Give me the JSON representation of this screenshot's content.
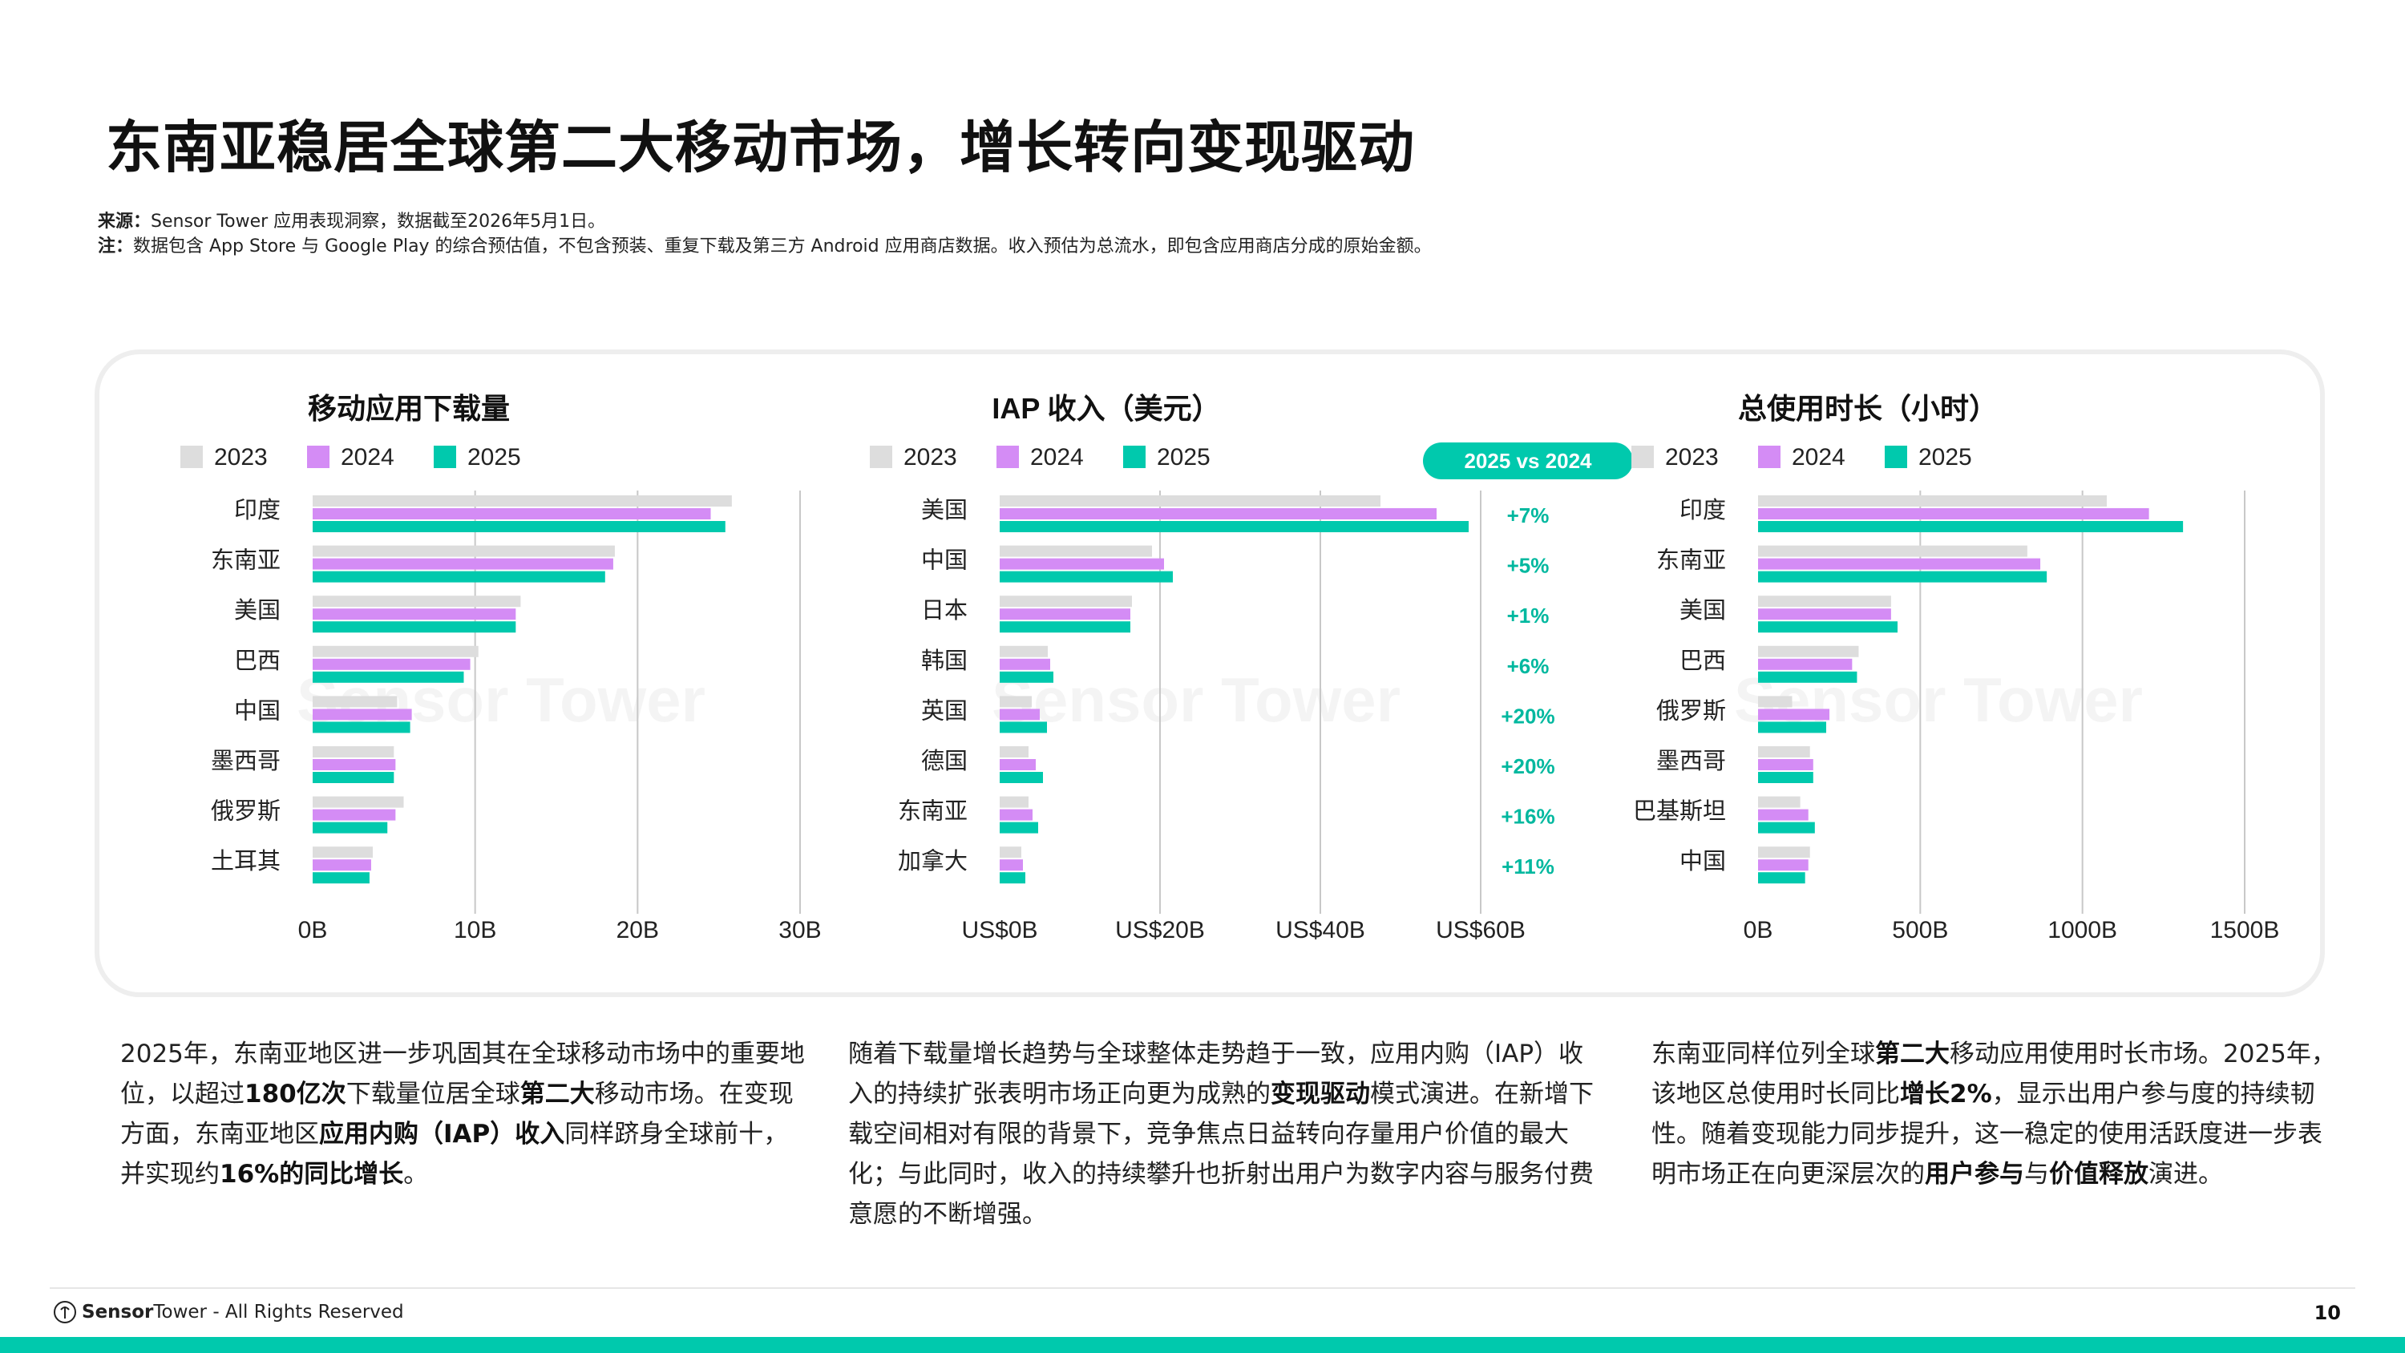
{
  "header": {
    "title": "东南亚稳居全球第二大移动市场，增长转向变现驱动",
    "source_label": "来源：",
    "source_text": "Sensor Tower 应用表现洞察，数据截至2026年5月1日。",
    "note_label": "注：",
    "note_text": "数据包含 App Store 与 Google Play 的综合预估值，不包含预装、重复下载及第三方 Android 应用商店数据。收入预估为总流水，即包含应用商店分成的原始金额。"
  },
  "colors": {
    "y2023": "#dddddd",
    "y2024": "#d48cf5",
    "y2025": "#00c9ad",
    "accent_text": "#00b89f",
    "badge_bg": "#00c9ad",
    "grid": "#c8c8c8"
  },
  "watermark": "Sensor Tower",
  "chart_data": [
    {
      "type": "bar",
      "orientation": "horizontal",
      "title": "移动应用下载量",
      "categories": [
        "印度",
        "东南亚",
        "美国",
        "巴西",
        "中国",
        "墨西哥",
        "俄罗斯",
        "土耳其"
      ],
      "series": [
        {
          "name": "2023",
          "values": [
            25.8,
            18.6,
            12.8,
            10.2,
            5.2,
            5.0,
            5.6,
            3.7
          ]
        },
        {
          "name": "2024",
          "values": [
            24.5,
            18.5,
            12.5,
            9.7,
            6.1,
            5.1,
            5.1,
            3.6
          ]
        },
        {
          "name": "2025",
          "values": [
            25.4,
            18.0,
            12.5,
            9.3,
            6.0,
            5.0,
            4.6,
            3.5
          ]
        }
      ],
      "xlim": [
        0,
        30
      ],
      "xticks": [
        "0B",
        "10B",
        "20B",
        "30B"
      ],
      "legend": "top",
      "grid": true
    },
    {
      "type": "bar",
      "orientation": "horizontal",
      "title": "IAP 收入（美元）",
      "categories": [
        "美国",
        "中国",
        "日本",
        "韩国",
        "英国",
        "德国",
        "东南亚",
        "加拿大"
      ],
      "series": [
        {
          "name": "2023",
          "values": [
            47.5,
            19.0,
            16.5,
            6.0,
            4.0,
            3.6,
            3.6,
            2.7
          ]
        },
        {
          "name": "2024",
          "values": [
            54.5,
            20.5,
            16.3,
            6.3,
            5.0,
            4.5,
            4.1,
            2.9
          ]
        },
        {
          "name": "2025",
          "values": [
            58.5,
            21.6,
            16.3,
            6.7,
            5.9,
            5.4,
            4.8,
            3.2
          ]
        }
      ],
      "xlim": [
        0,
        60
      ],
      "xticks": [
        "US$0B",
        "US$20B",
        "US$40B",
        "US$60B"
      ],
      "legend": "top",
      "grid": true,
      "yoy_header": "2025 vs 2024",
      "yoy": [
        "+7%",
        "+5%",
        "+1%",
        "+6%",
        "+20%",
        "+20%",
        "+16%",
        "+11%"
      ]
    },
    {
      "type": "bar",
      "orientation": "horizontal",
      "title": "总使用时长（小时）",
      "categories": [
        "印度",
        "东南亚",
        "美国",
        "巴西",
        "俄罗斯",
        "墨西哥",
        "巴基斯坦",
        "中国"
      ],
      "series": [
        {
          "name": "2023",
          "values": [
            1075,
            830,
            410,
            310,
            105,
            160,
            130,
            160
          ]
        },
        {
          "name": "2024",
          "values": [
            1205,
            870,
            410,
            290,
            220,
            170,
            155,
            155
          ]
        },
        {
          "name": "2025",
          "values": [
            1310,
            890,
            430,
            305,
            210,
            170,
            175,
            145
          ]
        }
      ],
      "xlim": [
        0,
        1500
      ],
      "xticks": [
        "0B",
        "500B",
        "1000B",
        "1500B"
      ],
      "legend": "top",
      "grid": true
    }
  ],
  "paragraphs": {
    "left": [
      "2025年，东南亚地区进一步巩固其在全球移动市场中的重要地位，以超过",
      "180亿次",
      "下载量位居全球",
      "第二大",
      "移动市场。在变现方面，东南亚地区",
      "应用内购（IAP）收入",
      "同样跻身全球前十，并实现约",
      "16%的同比增长",
      "。"
    ],
    "mid": [
      "随着下载量增长趋势与全球整体走势趋于一致，应用内购（IAP）收入的持续扩张表明市场正向更为成熟的",
      "变现驱动",
      "模式演进。在新增下载空间相对有限的背景下，竞争焦点日益转向存量用户价值的最大化；与此同时，收入的持续攀升也折射出用户为数字内容与服务付费意愿的不断增强。"
    ],
    "right": [
      "东南亚同样位列全球",
      "第二大",
      "移动应用使用时长市场。2025年，该地区总使用时长同比",
      "增长2%",
      "，显示出用户参与度的持续韧性。随着变现能力同步提升，这一稳定的使用活跃度进一步表明市场正在向更深层次的",
      "用户参与",
      "与",
      "价值释放",
      "演进。"
    ]
  },
  "footer": {
    "brand_bold": "Sensor",
    "brand_rest": "Tower - All Rights Reserved",
    "page_number": "10"
  }
}
